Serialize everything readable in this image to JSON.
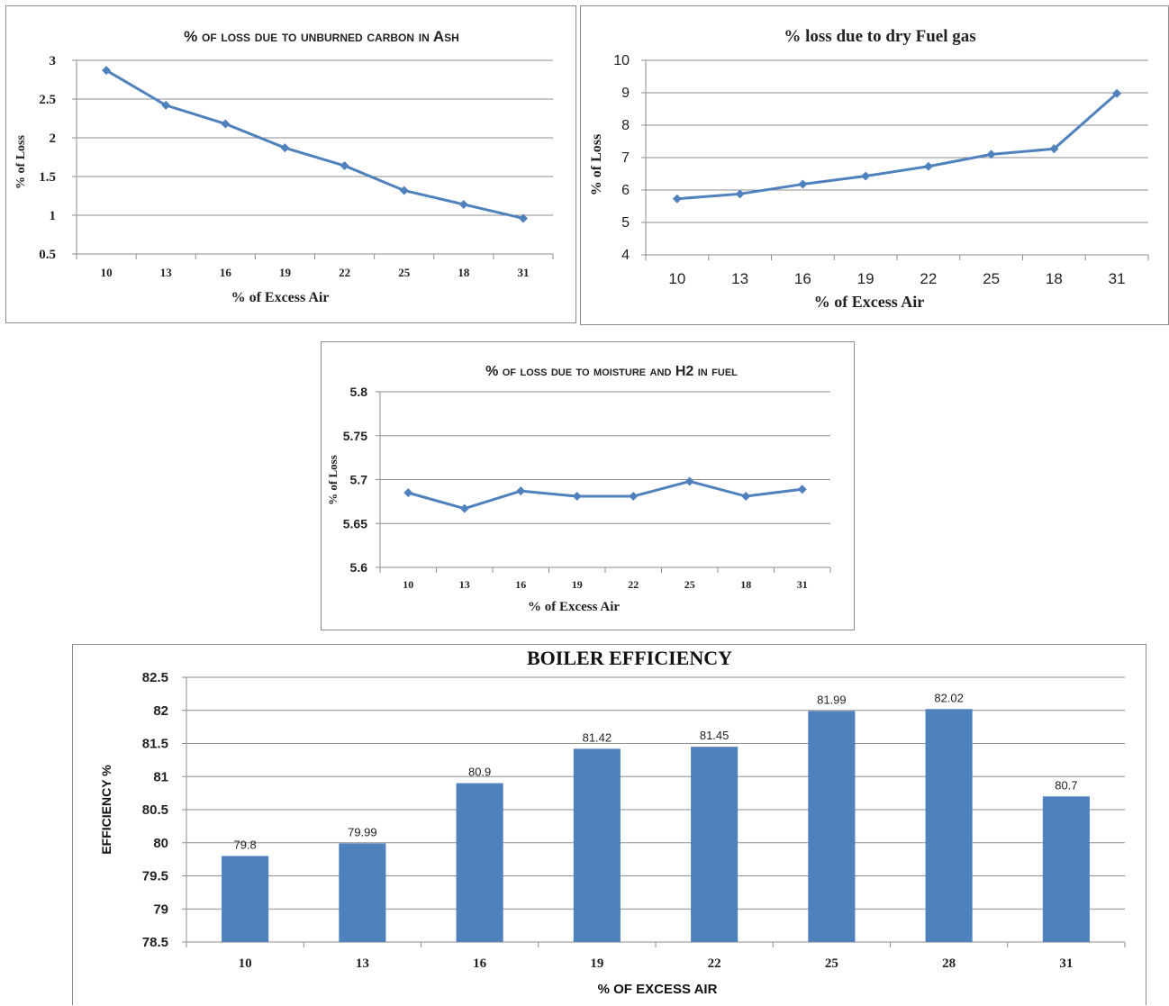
{
  "charts": {
    "carbon": {
      "chart_data": {
        "type": "line",
        "title": "% of loss due to unburned carbon in Ash",
        "xlabel": "% of Excess Air",
        "ylabel": "% of Loss",
        "categories": [
          "10",
          "13",
          "16",
          "19",
          "22",
          "25",
          "18",
          "31"
        ],
        "values": [
          2.87,
          2.42,
          2.18,
          1.87,
          1.64,
          1.32,
          1.14,
          0.96
        ],
        "yticks": [
          "0.5",
          "1",
          "1.5",
          "2",
          "2.5",
          "3"
        ],
        "ylim": [
          0.5,
          3
        ],
        "grid": true,
        "color": "#4f81bd"
      }
    },
    "dryfuel": {
      "chart_data": {
        "type": "line",
        "title": "% loss due to dry Fuel gas",
        "xlabel": "% of Excess Air",
        "ylabel": "% of Loss",
        "categories": [
          "10",
          "13",
          "16",
          "19",
          "22",
          "25",
          "18",
          "31"
        ],
        "values": [
          5.73,
          5.88,
          6.18,
          6.43,
          6.73,
          7.1,
          7.27,
          8.98
        ],
        "yticks": [
          "4",
          "5",
          "6",
          "7",
          "8",
          "9",
          "10"
        ],
        "ylim": [
          4,
          10
        ],
        "grid": true,
        "color": "#4f81bd"
      }
    },
    "moisture": {
      "chart_data": {
        "type": "line",
        "title": "% of loss due to moisture and H2 in fuel",
        "xlabel": "% of Excess Air",
        "ylabel": "% of Loss",
        "categories": [
          "10",
          "13",
          "16",
          "19",
          "22",
          "25",
          "18",
          "31"
        ],
        "values": [
          5.685,
          5.667,
          5.687,
          5.681,
          5.681,
          5.698,
          5.681,
          5.689
        ],
        "yticks": [
          "5.6",
          "5.65",
          "5.7",
          "5.75",
          "5.8"
        ],
        "ylim": [
          5.6,
          5.8
        ],
        "grid": true,
        "color": "#4f81bd"
      }
    },
    "boiler": {
      "chart_data": {
        "type": "bar",
        "title": "BOILER EFFICIENCY",
        "xlabel": "% OF EXCESS AIR",
        "ylabel": "EFFICIENCY %",
        "categories": [
          "10",
          "13",
          "16",
          "19",
          "22",
          "25",
          "28",
          "31"
        ],
        "values": [
          79.8,
          79.99,
          80.9,
          81.42,
          81.45,
          81.99,
          82.02,
          80.7
        ],
        "data_labels": [
          "79.8",
          "79.99",
          "80.9",
          "81.42",
          "81.45",
          "81.99",
          "82.02",
          "80.7"
        ],
        "yticks": [
          "78.5",
          "79",
          "79.5",
          "80",
          "80.5",
          "81",
          "81.5",
          "82",
          "82.5"
        ],
        "ylim": [
          78.5,
          82.5
        ],
        "grid": true,
        "color": "#4f81bd"
      }
    }
  }
}
